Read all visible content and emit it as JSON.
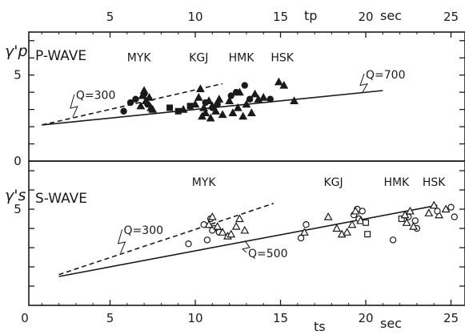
{
  "chart_data": [
    {
      "type": "scatter",
      "panel_label": "P-WAVE",
      "ylabel": "γ'p",
      "xlabel": "tp",
      "x_unit": "sec",
      "x_axis_position": "top",
      "xlim": [
        0,
        25
      ],
      "ylim": [
        0,
        7.5
      ],
      "x_ticks": [
        5,
        10,
        15,
        20,
        25
      ],
      "y_ticks": [
        0,
        5
      ],
      "y_tick_labels": [
        "0",
        "5"
      ],
      "stations": [
        {
          "name": "MYK",
          "x": 6.7,
          "y": 5.8
        },
        {
          "name": "KGJ",
          "x": 10.2,
          "y": 5.8
        },
        {
          "name": "HMK",
          "x": 12.7,
          "y": 5.8
        },
        {
          "name": "HSK",
          "x": 15.1,
          "y": 5.8
        }
      ],
      "lines": [
        {
          "name": "Q=300",
          "style": "dashed",
          "x": [
            1.0,
            11.6
          ],
          "y": [
            2.1,
            4.5
          ]
        },
        {
          "name": "Q=700",
          "style": "solid",
          "x": [
            1.0,
            21.0
          ],
          "y": [
            2.1,
            4.1
          ]
        }
      ],
      "line_labels": [
        {
          "text": "Q=300",
          "x": 3.0,
          "y": 3.6
        },
        {
          "text": "Q=700",
          "x": 20.0,
          "y": 4.8
        }
      ],
      "series": [
        {
          "name": "MYK",
          "marker": "filled-circle",
          "points": [
            [
              5.8,
              2.9
            ],
            [
              6.2,
              3.4
            ],
            [
              6.5,
              3.6
            ],
            [
              7.0,
              3.9
            ],
            [
              7.2,
              3.3
            ]
          ]
        },
        {
          "name": "MYK",
          "marker": "filled-triangle",
          "points": [
            [
              6.8,
              3.2
            ],
            [
              6.9,
              3.8
            ],
            [
              7.0,
              4.1
            ],
            [
              7.1,
              3.5
            ],
            [
              7.3,
              3.7
            ],
            [
              7.4,
              3.1
            ],
            [
              7.5,
              3.0
            ]
          ]
        },
        {
          "name": "KGJ",
          "marker": "filled-square",
          "points": [
            [
              8.5,
              3.1
            ],
            [
              9.0,
              2.9
            ],
            [
              9.7,
              3.2
            ]
          ]
        },
        {
          "name": "KGJ",
          "marker": "filled-triangle",
          "points": [
            [
              9.3,
              3.0
            ],
            [
              10.0,
              3.3
            ],
            [
              10.2,
              3.7
            ],
            [
              10.3,
              4.2
            ],
            [
              10.4,
              2.6
            ],
            [
              10.5,
              3.1
            ],
            [
              10.6,
              2.8
            ],
            [
              10.8,
              3.5
            ],
            [
              10.9,
              2.5
            ],
            [
              11.0,
              3.2
            ],
            [
              11.2,
              2.9
            ],
            [
              11.4,
              3.6
            ],
            [
              11.6,
              2.7
            ]
          ]
        },
        {
          "name": "KGJ",
          "marker": "filled-circle",
          "points": [
            [
              10.6,
              3.4
            ],
            [
              11.0,
              3.1
            ],
            [
              11.3,
              3.3
            ]
          ]
        },
        {
          "name": "HMK",
          "marker": "filled-circle",
          "points": [
            [
              12.1,
              3.8
            ],
            [
              12.4,
              4.0
            ],
            [
              12.9,
              4.4
            ],
            [
              13.2,
              3.6
            ],
            [
              14.4,
              3.6
            ]
          ]
        },
        {
          "name": "HMK",
          "marker": "filled-triangle",
          "points": [
            [
              12.0,
              3.5
            ],
            [
              12.2,
              2.8
            ],
            [
              12.5,
              3.1
            ],
            [
              12.6,
              4.0
            ],
            [
              12.8,
              2.6
            ],
            [
              13.0,
              3.3
            ],
            [
              13.3,
              2.8
            ],
            [
              13.5,
              3.9
            ],
            [
              13.7,
              3.6
            ]
          ]
        },
        {
          "name": "HSK",
          "marker": "filled-triangle",
          "points": [
            [
              14.0,
              3.7
            ],
            [
              14.9,
              4.6
            ],
            [
              15.2,
              4.4
            ],
            [
              15.8,
              3.5
            ]
          ]
        }
      ]
    },
    {
      "type": "scatter",
      "panel_label": "S-WAVE",
      "ylabel": "γ's",
      "xlabel": "ts",
      "x_unit": "sec",
      "x_axis_position": "bottom",
      "xlim": [
        0,
        25
      ],
      "ylim": [
        0,
        7.5
      ],
      "x_ticks": [
        0,
        5,
        10,
        15,
        20,
        25
      ],
      "y_ticks": [
        5
      ],
      "y_tick_labels": [
        "5"
      ],
      "stations": [
        {
          "name": "MYK",
          "x": 10.5,
          "y": 6.2
        },
        {
          "name": "KGJ",
          "x": 18.1,
          "y": 6.2
        },
        {
          "name": "HMK",
          "x": 21.8,
          "y": 6.2
        },
        {
          "name": "HSK",
          "x": 24.0,
          "y": 6.2
        }
      ],
      "lines": [
        {
          "name": "Q=300",
          "style": "dashed",
          "x": [
            2.0,
            14.6
          ],
          "y": [
            1.6,
            5.3
          ]
        },
        {
          "name": "Q=500",
          "style": "solid",
          "x": [
            2.0,
            24.2
          ],
          "y": [
            1.5,
            5.2
          ]
        }
      ],
      "line_labels": [
        {
          "text": "Q=300",
          "x": 5.8,
          "y": 3.7
        },
        {
          "text": "Q=500",
          "x": 13.1,
          "y": 2.5
        }
      ],
      "series": [
        {
          "name": "MYK",
          "marker": "open-circle",
          "points": [
            [
              9.6,
              3.2
            ],
            [
              10.5,
              4.2
            ],
            [
              10.7,
              3.4
            ],
            [
              10.9,
              4.5
            ],
            [
              11.1,
              4.0
            ],
            [
              11.4,
              3.8
            ],
            [
              11.0,
              3.9
            ]
          ]
        },
        {
          "name": "MYK",
          "marker": "open-triangle",
          "points": [
            [
              10.8,
              4.2
            ],
            [
              11.0,
              4.6
            ],
            [
              11.3,
              4.1
            ],
            [
              11.6,
              3.8
            ],
            [
              11.9,
              3.6
            ],
            [
              12.1,
              3.7
            ],
            [
              12.4,
              4.1
            ],
            [
              12.6,
              4.5
            ],
            [
              12.9,
              3.9
            ]
          ]
        },
        {
          "name": "KGJ",
          "marker": "open-circle",
          "points": [
            [
              16.2,
              3.5
            ],
            [
              16.5,
              4.2
            ],
            [
              19.3,
              4.7
            ],
            [
              19.5,
              5.0
            ],
            [
              19.8,
              4.9
            ],
            [
              19.6,
              4.5
            ]
          ]
        },
        {
          "name": "KGJ",
          "marker": "open-triangle",
          "points": [
            [
              16.4,
              3.8
            ],
            [
              17.8,
              4.6
            ],
            [
              18.3,
              4.0
            ],
            [
              18.6,
              3.7
            ],
            [
              18.9,
              3.8
            ],
            [
              19.2,
              4.2
            ],
            [
              19.4,
              4.9
            ],
            [
              19.7,
              4.4
            ]
          ]
        },
        {
          "name": "KGJ",
          "marker": "open-square",
          "points": [
            [
              20.0,
              4.3
            ],
            [
              20.1,
              3.7
            ]
          ]
        },
        {
          "name": "HMK",
          "marker": "open-circle",
          "points": [
            [
              21.6,
              3.4
            ],
            [
              22.5,
              4.6
            ],
            [
              22.9,
              4.4
            ],
            [
              23.0,
              4.0
            ]
          ]
        },
        {
          "name": "HMK",
          "marker": "open-square",
          "points": [
            [
              22.1,
              4.5
            ]
          ]
        },
        {
          "name": "HMK",
          "marker": "open-triangle",
          "points": [
            [
              22.3,
              4.7
            ],
            [
              22.6,
              4.9
            ],
            [
              22.8,
              4.1
            ],
            [
              22.4,
              4.3
            ]
          ]
        },
        {
          "name": "HSK",
          "marker": "open-triangle",
          "points": [
            [
              23.7,
              4.8
            ],
            [
              24.0,
              5.2
            ],
            [
              24.3,
              4.7
            ],
            [
              24.7,
              5.0
            ]
          ]
        },
        {
          "name": "HSK",
          "marker": "open-circle",
          "points": [
            [
              24.2,
              4.9
            ],
            [
              25.0,
              5.1
            ],
            [
              25.2,
              4.6
            ]
          ]
        }
      ]
    }
  ]
}
